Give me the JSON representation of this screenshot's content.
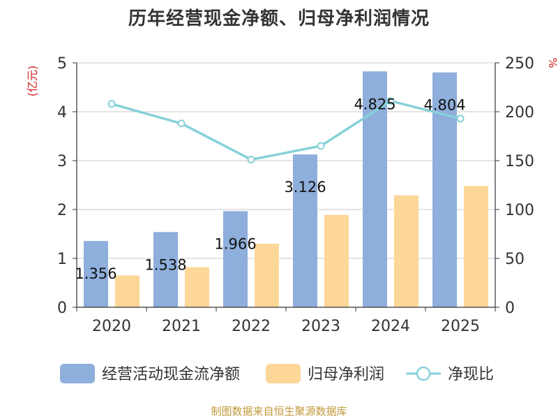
{
  "chart_data": {
    "type": "bar",
    "title": "历年经营现金净额、归母净利润情况",
    "source": "制图数据来自恒生聚源数据库",
    "categories": [
      "2020",
      "2021",
      "2022",
      "2023",
      "2024",
      "2025"
    ],
    "y_left": {
      "label": "(亿元)",
      "min": 0,
      "max": 5,
      "ticks": [
        "0",
        "1",
        "2",
        "3",
        "4",
        "5"
      ]
    },
    "y_right": {
      "label": "%",
      "min": 0,
      "max": 250,
      "ticks": [
        "0",
        "50",
        "100",
        "150",
        "200",
        "250"
      ]
    },
    "grid": true,
    "legend_position": "bottom",
    "series": [
      {
        "name": "经营活动现金流净额",
        "kind": "bar",
        "axis": "left",
        "color": "#8eaedb",
        "values": [
          1.356,
          1.538,
          1.966,
          3.126,
          4.825,
          4.804
        ],
        "labels": [
          "1.356",
          "1.538",
          "1.966",
          "3.126",
          "4.825",
          "4.804"
        ]
      },
      {
        "name": "归母净利润",
        "kind": "bar",
        "axis": "left",
        "color": "#fdd797",
        "values": [
          0.65,
          0.82,
          1.3,
          1.89,
          2.29,
          2.48
        ]
      },
      {
        "name": "净现比",
        "kind": "line",
        "axis": "right",
        "color": "#86d1d8",
        "values": [
          208,
          188,
          151,
          165,
          211,
          193
        ]
      }
    ]
  }
}
